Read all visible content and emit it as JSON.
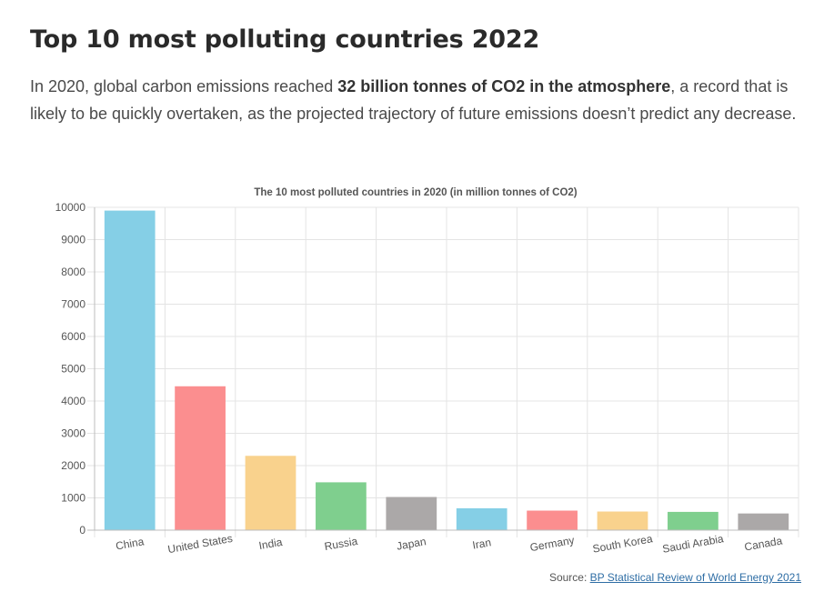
{
  "article": {
    "title": "Top 10 most polluting countries 2022",
    "intro_before": "In 2020, global carbon emissions reached ",
    "intro_bold": "32 billion tonnes of CO2 in the atmosphere",
    "intro_after": ", a record that is likely to be quickly overtaken, as the projected trajectory of future emissions doesn’t predict any decrease."
  },
  "source": {
    "prefix": "Source: ",
    "link_text": "BP Statistical Review of World Energy 2021"
  },
  "chart_data": {
    "type": "bar",
    "title": "The 10 most polluted countries in 2020 (in million tonnes of CO2)",
    "xlabel": "",
    "ylabel": "",
    "categories": [
      "China",
      "United States",
      "India",
      "Russia",
      "Japan",
      "Iran",
      "Germany",
      "South Korea",
      "Saudi Arabia",
      "Canada"
    ],
    "values": [
      9899,
      4457,
      2302,
      1482,
      1027,
      678,
      605,
      577,
      566,
      517
    ],
    "ylim": [
      0,
      10000
    ],
    "yticks": [
      0,
      1000,
      2000,
      3000,
      4000,
      5000,
      6000,
      7000,
      8000,
      9000,
      10000
    ],
    "grid": true,
    "legend": "none",
    "colors": [
      "#85cfe6",
      "#fb8e8f",
      "#f9d28d",
      "#7fcf8e",
      "#aba8a8",
      "#85cfe6",
      "#fb8e8f",
      "#f9d28d",
      "#7fcf8e",
      "#aba8a8"
    ]
  }
}
